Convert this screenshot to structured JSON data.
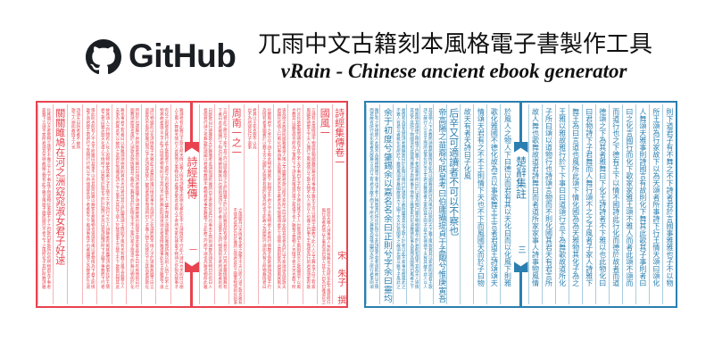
{
  "brand": {
    "name": "GitHub",
    "logo_icon": "github-octocat-icon"
  },
  "title": "兀雨中文古籍刻本風格電子書製作工具",
  "subtitle": "vRain - Chinese ancient ebook generator",
  "colors": {
    "red": "#e8434f",
    "blue": "#2a7fb0",
    "red_line": "#f4b5b9",
    "blue_line": "#a9cde0"
  },
  "pages": [
    {
      "name": "shijing",
      "color": "#e8434f",
      "line": "#f4b5b9",
      "center_title": "詩經集傳",
      "page_no": "一",
      "right": [
        {
          "type": "big",
          "text": "詩經集傳卷一",
          "bottom": "宋　朱子　撰"
        },
        {
          "type": "big",
          "text": "國風一",
          "rest": "small"
        },
        {
          "type": "small"
        },
        {
          "type": "small"
        },
        {
          "type": "small"
        },
        {
          "type": "small"
        },
        {
          "type": "small",
          "short": true
        },
        {
          "type": "big",
          "text": "周南一之一",
          "rest": "small"
        },
        {
          "type": "small"
        },
        {
          "type": "small"
        }
      ],
      "left": [
        {
          "type": "small"
        },
        {
          "type": "small"
        },
        {
          "type": "small"
        },
        {
          "type": "small"
        },
        {
          "type": "small"
        },
        {
          "type": "small"
        },
        {
          "type": "small"
        },
        {
          "type": "small",
          "short": true
        },
        {
          "type": "big",
          "text": "關關雎鳩在河之洲窈窕淑女君子好逑"
        },
        {
          "type": "small"
        }
      ]
    },
    {
      "name": "chuci",
      "color": "#2a7fb0",
      "line": "#a9cde0",
      "center_title": "楚辭集註",
      "page_no": "三",
      "right": [
        {
          "type": "med"
        },
        {
          "type": "med"
        },
        {
          "type": "med"
        },
        {
          "type": "med"
        },
        {
          "type": "med"
        },
        {
          "type": "med"
        },
        {
          "type": "med"
        },
        {
          "type": "med"
        },
        {
          "type": "med"
        },
        {
          "type": "med"
        },
        {
          "type": "med"
        }
      ],
      "left": [
        {
          "type": "med"
        },
        {
          "type": "med"
        },
        {
          "type": "med"
        },
        {
          "type": "med",
          "short": true
        },
        {
          "type": "big",
          "text": "后辛又可適讀者不可以不察也"
        },
        {
          "type": "big",
          "text": "帝高陽之苗裔兮朕皇考曰伯庸攝提貞于孟陬兮惟庚寅吾"
        },
        {
          "type": "small"
        },
        {
          "type": "small"
        },
        {
          "type": "small"
        },
        {
          "type": "big",
          "text": "余于初度兮肇錫余以嘉名名余曰正則兮字余曰靈均"
        },
        {
          "type": "small"
        }
      ]
    }
  ]
}
